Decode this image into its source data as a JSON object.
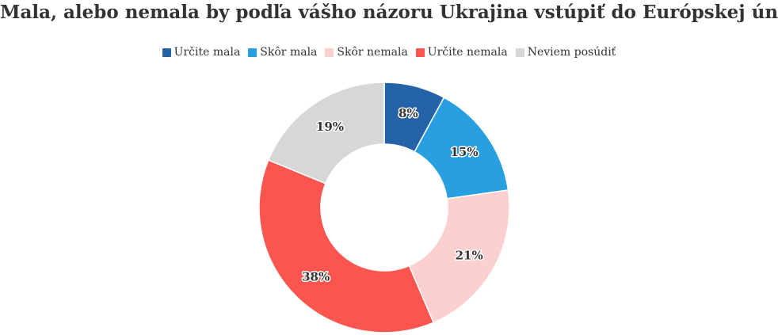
{
  "chart_data": {
    "type": "pie",
    "title": "Mala, alebo nemala by podľa vášho názoru Ukrajina vstúpiť do Európskej únie?",
    "categories": [
      "Určite mala",
      "Skôr mala",
      "Skôr nemala",
      "Určite nemala",
      "Neviem posúdiť"
    ],
    "values": [
      8,
      15,
      21,
      38,
      19
    ],
    "labels": [
      "8%",
      "15%",
      "21%",
      "38%",
      "19%"
    ],
    "colors": [
      "#2563a8",
      "#279fe0",
      "#fdd0d0",
      "#fb5550",
      "#d7d7d7"
    ],
    "legend_position": "top-center",
    "donut": true
  }
}
